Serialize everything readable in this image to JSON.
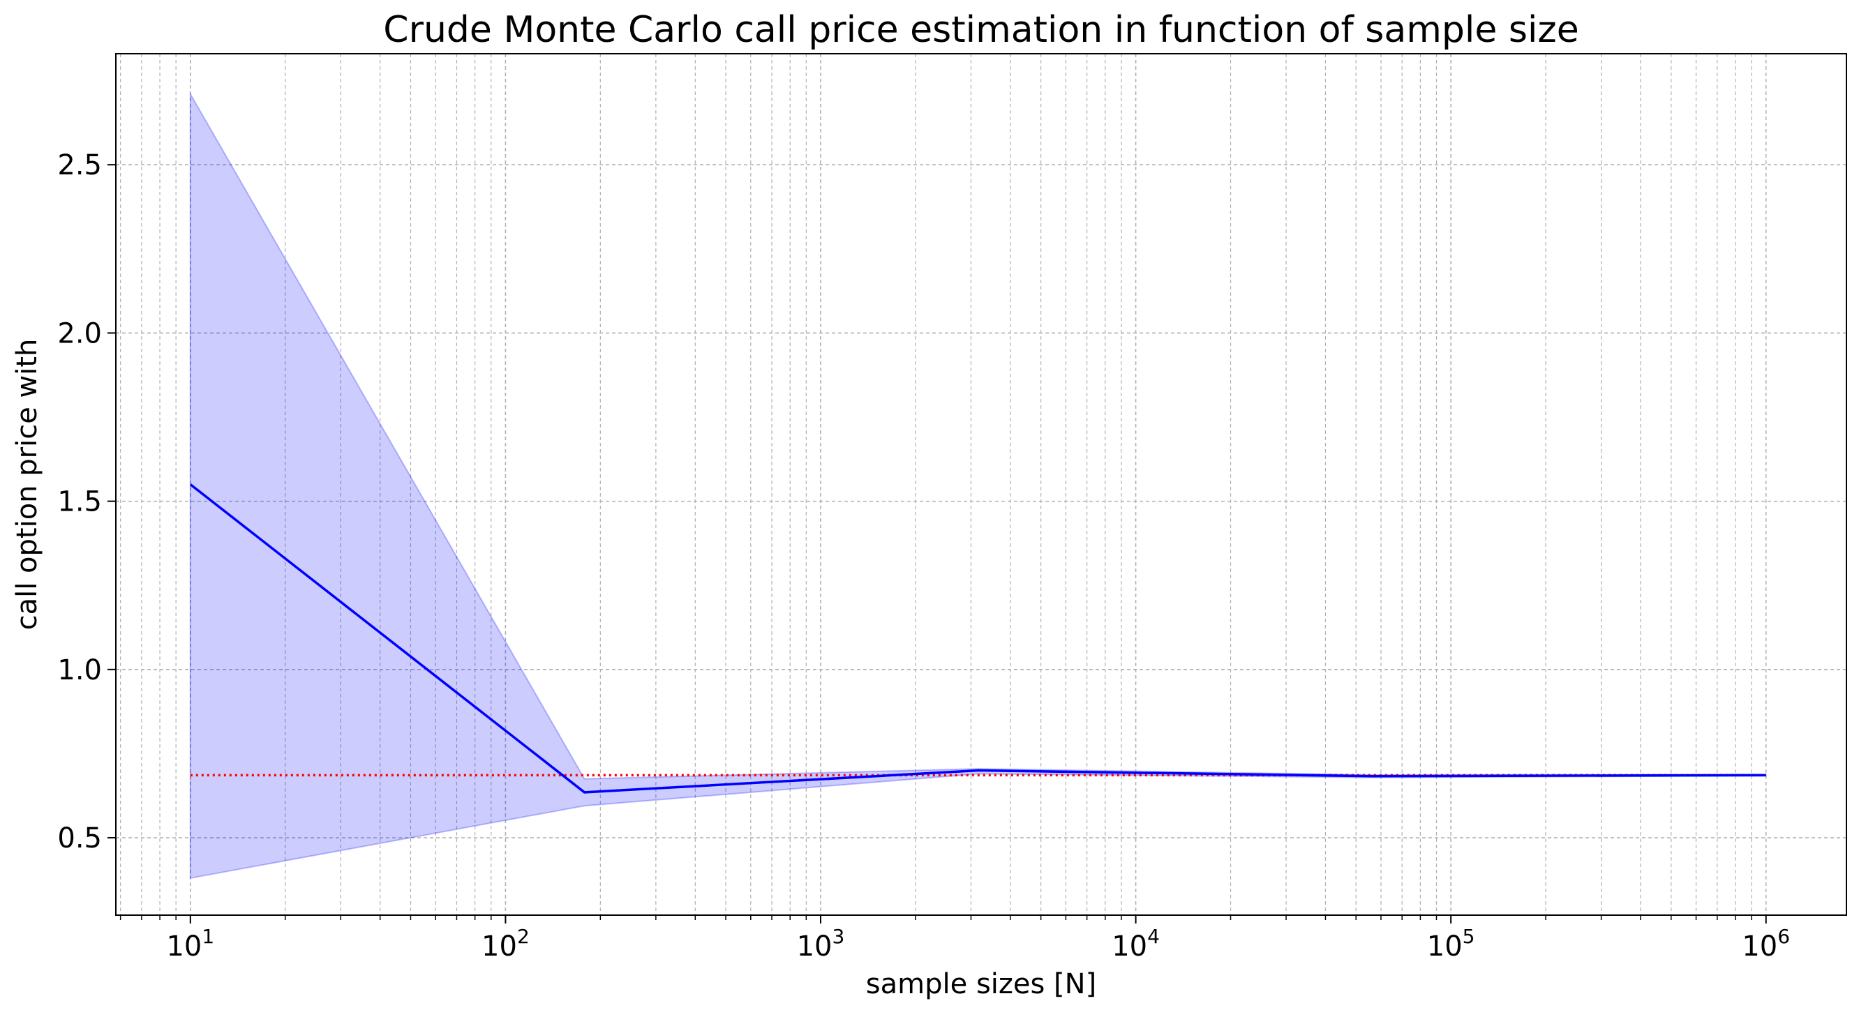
{
  "chart_data": {
    "type": "line",
    "title": "Crude Monte Carlo call price estimation in function of sample size",
    "xlabel": "sample sizes [N]",
    "ylabel": "call option price with",
    "xscale": "log",
    "xlim": [
      5.8,
      1800000
    ],
    "ylim": [
      0.27,
      2.83
    ],
    "grid": true,
    "legend": "none",
    "xticks": [
      {
        "value": 10,
        "base": "10",
        "exp": "1"
      },
      {
        "value": 100,
        "base": "10",
        "exp": "2"
      },
      {
        "value": 1000,
        "base": "10",
        "exp": "3"
      },
      {
        "value": 10000,
        "base": "10",
        "exp": "4"
      },
      {
        "value": 100000,
        "base": "10",
        "exp": "5"
      },
      {
        "value": 1000000,
        "base": "10",
        "exp": "6"
      }
    ],
    "yticks": [
      {
        "value": 0.5,
        "label": "0.5"
      },
      {
        "value": 1.0,
        "label": "1.0"
      },
      {
        "value": 1.5,
        "label": "1.5"
      },
      {
        "value": 2.0,
        "label": "2.0"
      },
      {
        "value": 2.5,
        "label": "2.5"
      }
    ],
    "x": [
      10,
      178,
      3162,
      56234,
      1000000
    ],
    "series": [
      {
        "role": "estimate",
        "color": "#0000ff",
        "style": "solid",
        "values": [
          1.55,
          0.635,
          0.7,
          0.683,
          0.686
        ]
      },
      {
        "role": "reference",
        "color": "#ff0000",
        "style": "dotted",
        "values": [
          0.686,
          0.686,
          0.686,
          0.686,
          0.686
        ]
      }
    ],
    "band": {
      "color": "#0000ff",
      "opacity": 0.2,
      "upper": [
        2.71,
        0.675,
        0.705,
        0.687,
        0.688
      ],
      "lower": [
        0.38,
        0.595,
        0.69,
        0.679,
        0.684
      ]
    }
  }
}
